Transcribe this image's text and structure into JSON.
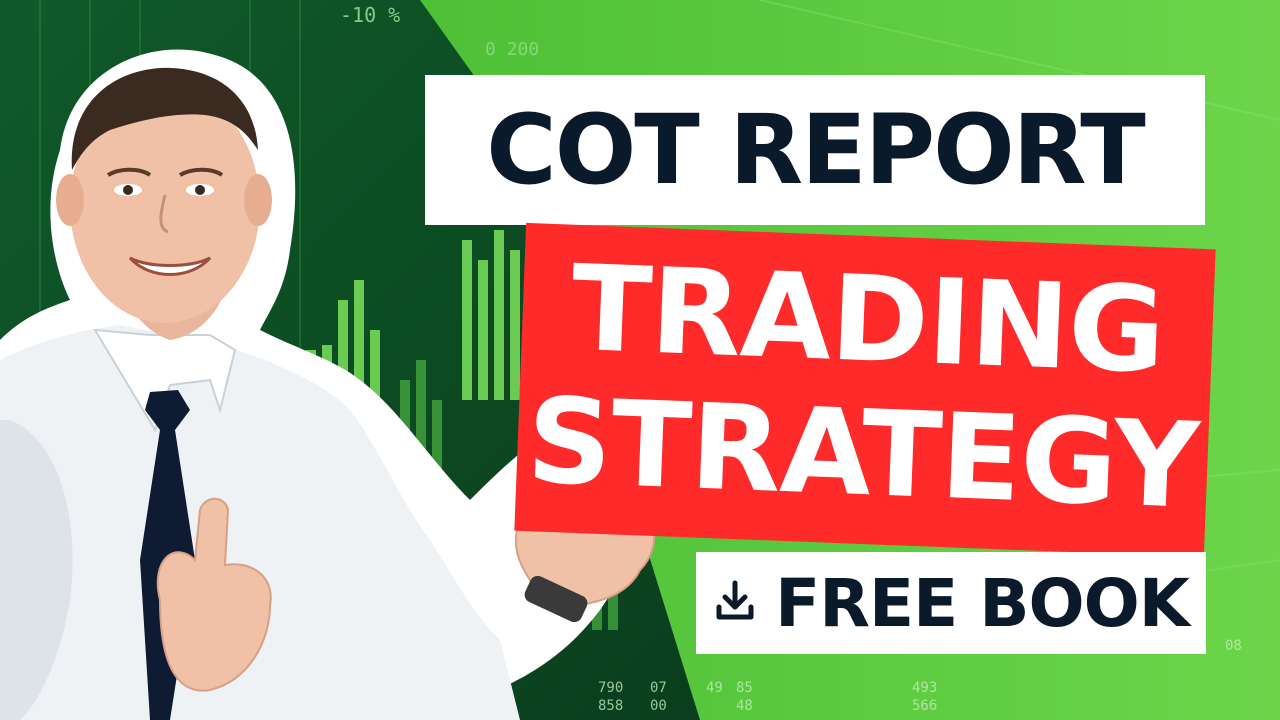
{
  "thumbnail": {
    "headline": "COT REPORT",
    "subhead_line1": "TRADING",
    "subhead_line2": "STRATEGY",
    "cta_label": "FREE BOOK",
    "cta_icon": "download-icon"
  },
  "ticker_numbers": {
    "top_percent": "-10 %",
    "top_value": "0 200",
    "bottom_rows": [
      "790",
      "858",
      "07",
      "00",
      "49",
      "85",
      "48",
      "493",
      "566",
      "08"
    ]
  },
  "colors": {
    "accent_red": "#ff2a2a",
    "headline_navy": "#0b1a2b",
    "bg_green": "#4cc23a",
    "white": "#ffffff"
  }
}
